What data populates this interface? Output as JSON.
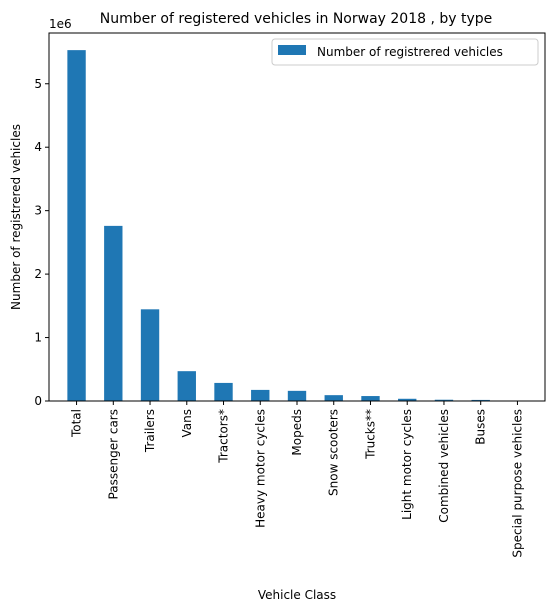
{
  "chart_data": {
    "type": "bar",
    "title": "Number of registered vehicles in Norway 2018 , by type",
    "xlabel": "Vehicle Class",
    "ylabel": "Number of registrered vehicles",
    "offset_text": "1e6",
    "ylim": [
      0,
      5.8
    ],
    "yticks": [
      "0",
      "1",
      "2",
      "3",
      "4",
      "5"
    ],
    "categories": [
      "Total",
      "Passenger cars",
      "Trailers",
      "Vans",
      "Tractors*",
      "Heavy motor cycles",
      "Mopeds",
      "Snow scooters",
      "Trucks**",
      "Light motor cycles",
      "Combined vehicles",
      "Buses",
      "Special purpose vehicles"
    ],
    "series": [
      {
        "name": "Number of registrered vehicles",
        "color": "#1f77b4",
        "values": [
          5530000,
          2760000,
          1445000,
          470000,
          285000,
          175000,
          160000,
          92000,
          78000,
          35000,
          20000,
          17000,
          5000
        ]
      }
    ],
    "legend": "top-right",
    "grid": false
  }
}
